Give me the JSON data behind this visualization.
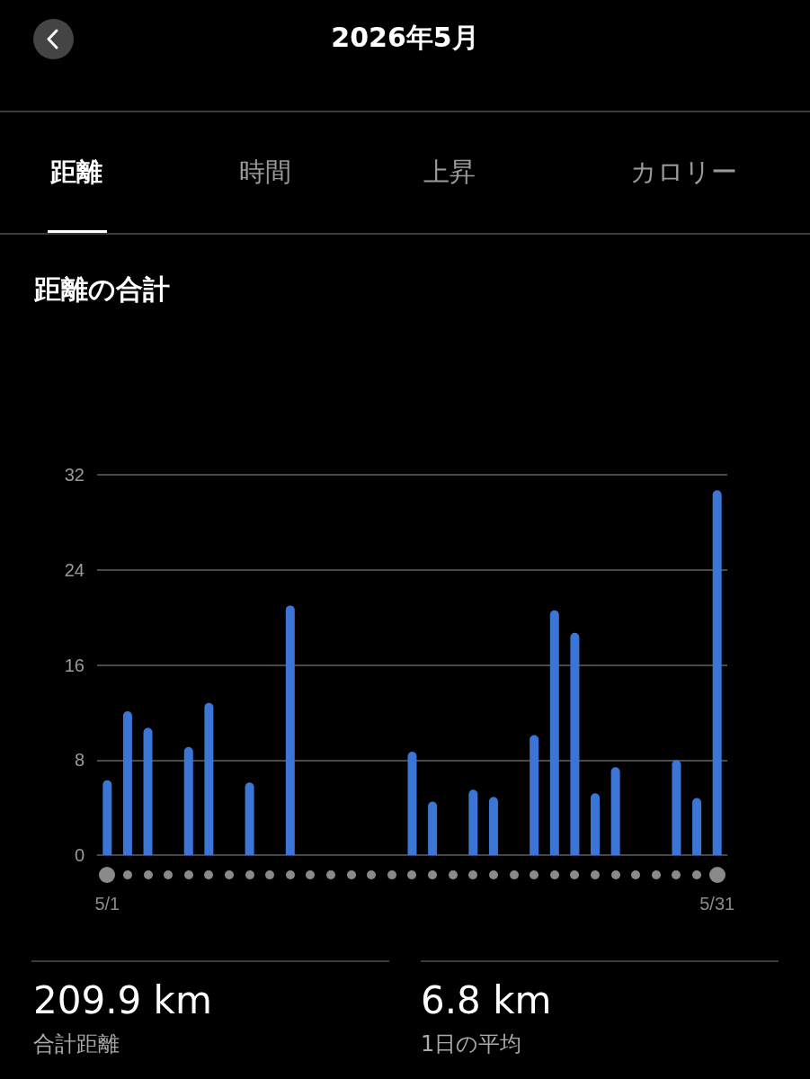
{
  "chart_data": {
    "type": "bar",
    "title": "距離の合計",
    "annotations": [
      "2026年5月",
      "距離",
      "時間",
      "上昇",
      "カロリー",
      "209.9 km",
      "合計距離",
      "6.8 km",
      "1日の平均"
    ],
    "categories": [
      "5/1",
      null,
      null,
      null,
      null,
      null,
      null,
      null,
      null,
      null,
      null,
      null,
      null,
      null,
      null,
      null,
      null,
      null,
      null,
      null,
      null,
      null,
      null,
      null,
      null,
      null,
      null,
      null,
      null,
      null,
      "5/31"
    ],
    "values": [
      6.3,
      12.1,
      10.7,
      null,
      9.1,
      12.8,
      null,
      6.1,
      null,
      21.0,
      null,
      null,
      null,
      null,
      null,
      8.7,
      4.5,
      null,
      5.5,
      4.9,
      null,
      10.1,
      20.6,
      18.7,
      5.2,
      7.4,
      null,
      null,
      8.0,
      4.8,
      30.7
    ],
    "color": "#3b75d5",
    "ylim": [
      0,
      32
    ],
    "yticks": [
      0,
      8,
      16,
      24,
      32
    ],
    "grid": "y"
  }
}
